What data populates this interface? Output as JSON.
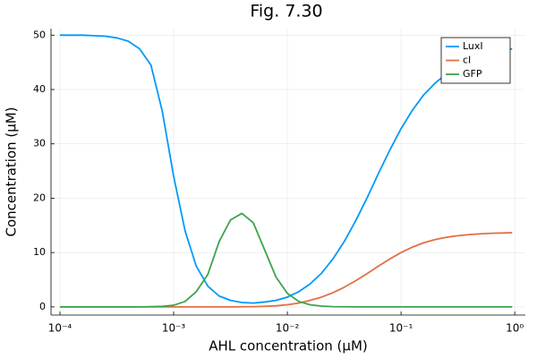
{
  "chart_data": {
    "type": "line",
    "title": "Fig. 7.30",
    "xlabel": "AHL concentration (μM)",
    "ylabel": "Concentration (μM)",
    "xscale": "log",
    "grid": true,
    "legend": "topright",
    "xlim": [
      8.34e-05,
      1.24
    ],
    "ylim": [
      -1.5,
      51.2
    ],
    "xticks": [
      {
        "value": 0.0001,
        "label": "10⁻⁴"
      },
      {
        "value": 0.001,
        "label": "10⁻³"
      },
      {
        "value": 0.01,
        "label": "10⁻²"
      },
      {
        "value": 0.1,
        "label": "10⁻¹"
      },
      {
        "value": 1,
        "label": "10⁰"
      }
    ],
    "yticks": [
      0,
      10,
      20,
      30,
      40,
      50
    ],
    "x": [
      0.0001,
      0.000126,
      0.000158,
      0.0002,
      0.000251,
      0.000316,
      0.000398,
      0.000501,
      0.000631,
      0.000794,
      0.001,
      0.00126,
      0.00158,
      0.002,
      0.00251,
      0.00316,
      0.00398,
      0.00501,
      0.00631,
      0.00794,
      0.01,
      0.0126,
      0.0158,
      0.02,
      0.0251,
      0.0316,
      0.0398,
      0.0501,
      0.0631,
      0.0794,
      0.1,
      0.126,
      0.158,
      0.2,
      0.251,
      0.316,
      0.398,
      0.501,
      0.631,
      0.794,
      0.95
    ],
    "series": [
      {
        "name": "LuxI",
        "color": "#009af9",
        "values": [
          50,
          50,
          50,
          49.9,
          49.8,
          49.5,
          48.9,
          47.5,
          44.5,
          36,
          24,
          14,
          7.5,
          3.8,
          2.0,
          1.2,
          0.8,
          0.7,
          0.9,
          1.2,
          1.8,
          2.8,
          4.2,
          6.2,
          8.8,
          12,
          15.8,
          20,
          24.5,
          28.8,
          32.8,
          36.2,
          39,
          41.2,
          42.9,
          44.2,
          45.2,
          46,
          46.6,
          47.1,
          47.5
        ]
      },
      {
        "name": "cI",
        "color": "#e26f46",
        "values": [
          0,
          0,
          0,
          0,
          0,
          0,
          0,
          0,
          0,
          0,
          0,
          0,
          0,
          0,
          0,
          0,
          0.02,
          0.05,
          0.1,
          0.2,
          0.4,
          0.7,
          1.2,
          1.8,
          2.6,
          3.6,
          4.8,
          6.1,
          7.5,
          8.8,
          10,
          11,
          11.8,
          12.4,
          12.8,
          13.1,
          13.3,
          13.45,
          13.55,
          13.6,
          13.65
        ]
      },
      {
        "name": "GFP",
        "color": "#3da44d",
        "values": [
          0,
          0,
          0,
          0,
          0,
          0,
          0,
          0,
          0.05,
          0.1,
          0.3,
          1.0,
          2.8,
          6,
          12,
          16,
          17.2,
          15.5,
          10.5,
          5.5,
          2.5,
          1.0,
          0.4,
          0.15,
          0.05,
          0.02,
          0,
          0,
          0,
          0,
          0,
          0,
          0,
          0,
          0,
          0,
          0,
          0,
          0,
          0,
          0
        ]
      }
    ]
  }
}
